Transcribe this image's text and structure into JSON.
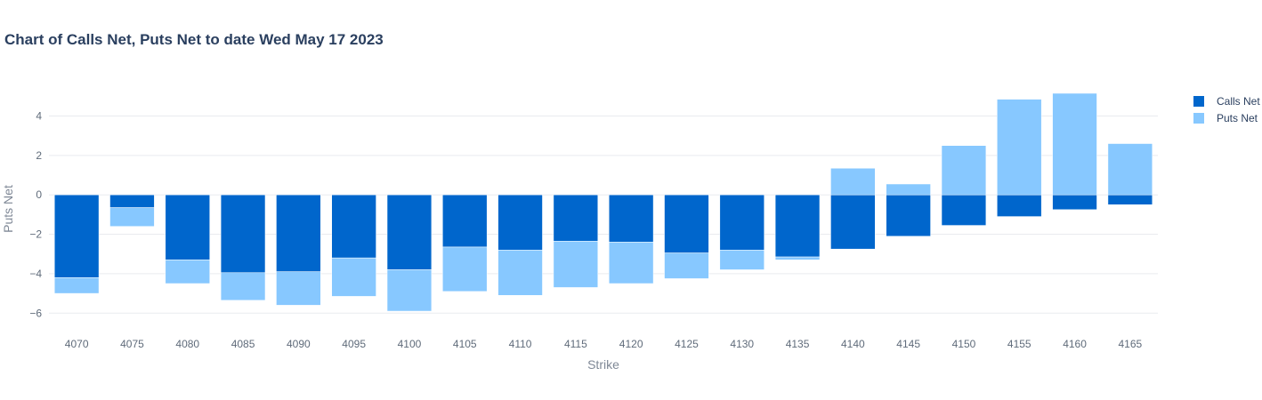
{
  "chart_data": {
    "type": "bar",
    "barmode": "relative",
    "title": "Chart of Calls Net, Puts Net to date Wed May 17 2023",
    "xlabel": "Strike",
    "ylabel": "Puts Net",
    "categories": [
      "4070",
      "4075",
      "4080",
      "4085",
      "4090",
      "4095",
      "4100",
      "4105",
      "4110",
      "4115",
      "4120",
      "4125",
      "4130",
      "4135",
      "4140",
      "4145",
      "4150",
      "4155",
      "4160",
      "4165"
    ],
    "series": [
      {
        "name": "Calls Net",
        "color": "#0066cc",
        "values": [
          -4.2,
          -0.65,
          -3.3,
          -3.95,
          -3.9,
          -3.2,
          -3.8,
          -2.65,
          -2.8,
          -2.35,
          -2.4,
          -2.95,
          -2.8,
          -3.15,
          -2.75,
          -2.1,
          -1.55,
          -1.1,
          -0.75,
          -0.5
        ]
      },
      {
        "name": "Puts Net",
        "color": "#87c8ff",
        "values": [
          -0.8,
          -0.95,
          -1.2,
          -1.4,
          -1.7,
          -1.95,
          -2.1,
          -2.25,
          -2.3,
          -2.35,
          -2.1,
          -1.3,
          -1.0,
          -0.15,
          1.35,
          0.55,
          2.5,
          4.85,
          5.15,
          2.6
        ]
      }
    ],
    "ylim": [
      -6.8,
      5.6
    ],
    "yticks": [
      -6,
      -4,
      -2,
      0,
      2,
      4
    ],
    "grid": true,
    "legend_position": "top-right"
  }
}
